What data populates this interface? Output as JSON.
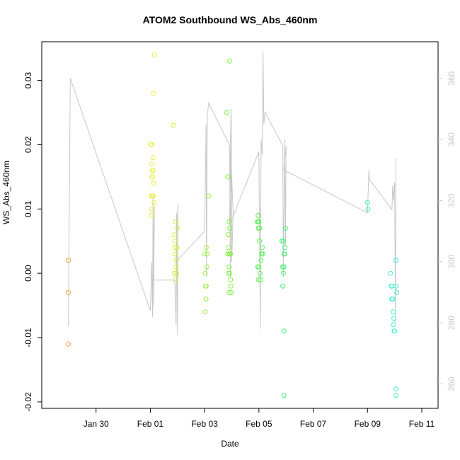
{
  "chart_data": {
    "type": "scatter",
    "title": "ATOM2 Southbound WS_Abs_460nm",
    "xlabel": "Date",
    "ylabel": "WS_Abs_460nm",
    "x_ticks": [
      "Jan 30",
      "Feb 01",
      "Feb 03",
      "Feb 05",
      "Feb 07",
      "Feb 09",
      "Feb 11"
    ],
    "x_tick_days": [
      30,
      32,
      34,
      36,
      38,
      40,
      42
    ],
    "xlim": [
      28.0,
      42.6
    ],
    "ylim": [
      -0.021,
      0.036
    ],
    "y_ticks": [
      "-0.02",
      "-0.01",
      "0.00",
      "0.01",
      "0.02",
      "0.03"
    ],
    "y_tick_values": [
      -0.02,
      -0.01,
      0.0,
      0.01,
      0.02,
      0.03
    ],
    "y2_ticks": [
      "260",
      "280",
      "300",
      "320",
      "340",
      "360"
    ],
    "y2_tick_values": [
      260,
      280,
      300,
      320,
      340,
      360
    ],
    "y2lim": [
      252,
      372
    ],
    "grid": false,
    "series": [
      {
        "color": "#F5A040",
        "points": [
          [
            28.98,
            0.002
          ],
          [
            28.98,
            -0.003
          ],
          [
            28.98,
            -0.011
          ]
        ]
      },
      {
        "color": "#E8F040",
        "points": [
          [
            32.02,
            0.02
          ],
          [
            32.05,
            0.02
          ],
          [
            32.06,
            0.017
          ],
          [
            32.07,
            0.016
          ],
          [
            32.08,
            0.015
          ],
          [
            32.1,
            0.018
          ],
          [
            32.12,
            0.014
          ],
          [
            32.04,
            0.012
          ],
          [
            32.08,
            0.012
          ],
          [
            32.14,
            0.011
          ],
          [
            32.03,
            0.009
          ],
          [
            32.05,
            0.01
          ],
          [
            32.1,
            0.016
          ],
          [
            32.06,
            0.015
          ],
          [
            32.15,
            0.034
          ],
          [
            32.12,
            0.028
          ],
          [
            32.1,
            0.012
          ]
        ]
      },
      {
        "color": "#D2F040",
        "points": [
          [
            32.85,
            0.023
          ],
          [
            32.88,
            0.006
          ],
          [
            32.9,
            0.004
          ],
          [
            32.92,
            0.003
          ],
          [
            32.95,
            0.002
          ],
          [
            32.97,
            0.0
          ],
          [
            32.9,
            0.005
          ],
          [
            32.93,
            0.008
          ],
          [
            33.0,
            0.007
          ],
          [
            32.98,
            0.004
          ],
          [
            32.88,
            0.0
          ],
          [
            32.92,
            -0.001
          ],
          [
            32.95,
            0.001
          ]
        ]
      },
      {
        "color": "#9AF040",
        "points": [
          [
            34.0,
            0.003
          ],
          [
            34.02,
            0.0
          ],
          [
            34.04,
            -0.002
          ],
          [
            34.06,
            0.004
          ],
          [
            34.08,
            0.001
          ],
          [
            34.02,
            -0.006
          ],
          [
            34.1,
            0.003
          ],
          [
            34.05,
            -0.004
          ],
          [
            34.15,
            0.012
          ],
          [
            34.06,
            -0.002
          ]
        ]
      },
      {
        "color": "#80F040",
        "points": [
          [
            34.82,
            0.025
          ],
          [
            34.85,
            0.015
          ],
          [
            34.87,
            0.006
          ],
          [
            34.9,
            0.008
          ],
          [
            34.92,
            0.003
          ],
          [
            34.88,
            0.004
          ],
          [
            34.85,
            0.003
          ],
          [
            34.9,
            0.001
          ],
          [
            34.93,
            0.0
          ],
          [
            34.95,
            -0.001
          ],
          [
            34.97,
            -0.002
          ],
          [
            34.9,
            -0.003
          ],
          [
            34.98,
            -0.003
          ],
          [
            34.95,
            0.003
          ],
          [
            34.92,
            0.033
          ],
          [
            34.88,
            0.0
          ],
          [
            34.93,
            0.007
          ]
        ]
      },
      {
        "color": "#5CF058",
        "points": [
          [
            35.95,
            0.008
          ],
          [
            35.97,
            0.009
          ],
          [
            36.0,
            0.008
          ],
          [
            35.98,
            0.007
          ],
          [
            36.02,
            0.005
          ],
          [
            35.96,
            0.001
          ],
          [
            36.0,
            0.001
          ],
          [
            36.04,
            0.0
          ],
          [
            35.98,
            -0.001
          ],
          [
            36.05,
            -0.001
          ],
          [
            36.1,
            0.003
          ],
          [
            36.12,
            0.004
          ],
          [
            36.08,
            0.002
          ],
          [
            36.15,
            0.003
          ],
          [
            36.02,
            0.007
          ],
          [
            35.97,
            0.008
          ]
        ]
      },
      {
        "color": "#40F070",
        "points": [
          [
            36.85,
            0.005
          ],
          [
            36.9,
            0.005
          ],
          [
            36.93,
            0.003
          ],
          [
            36.96,
            0.004
          ],
          [
            36.98,
            0.007
          ],
          [
            36.88,
            0.001
          ],
          [
            36.92,
            0.001
          ],
          [
            36.95,
            0.003
          ],
          [
            36.9,
            0.0
          ],
          [
            36.88,
            -0.002
          ],
          [
            36.92,
            -0.009
          ],
          [
            36.92,
            -0.019
          ]
        ]
      },
      {
        "color": "#40F0B0",
        "points": [
          [
            40.0,
            0.011
          ],
          [
            40.02,
            0.01
          ]
        ]
      },
      {
        "color": "#40F0D0",
        "points": [
          [
            40.85,
            0.0
          ],
          [
            40.88,
            -0.002
          ],
          [
            40.9,
            -0.004
          ],
          [
            40.93,
            -0.004
          ],
          [
            40.95,
            -0.006
          ],
          [
            40.97,
            -0.007
          ],
          [
            40.95,
            -0.008
          ],
          [
            40.98,
            -0.009
          ],
          [
            41.0,
            -0.009
          ],
          [
            41.05,
            -0.002
          ],
          [
            41.08,
            -0.003
          ],
          [
            41.05,
            0.002
          ],
          [
            40.9,
            -0.002
          ],
          [
            41.05,
            -0.018
          ],
          [
            41.05,
            -0.019
          ]
        ]
      }
    ],
    "secondary_line": {
      "color": "#C8C8C8",
      "points": [
        [
          28.98,
          279
        ],
        [
          29.05,
          360
        ],
        [
          32.0,
          284
        ],
        [
          32.05,
          300
        ],
        [
          32.08,
          282
        ],
        [
          32.1,
          322
        ],
        [
          32.12,
          285
        ],
        [
          32.15,
          318
        ],
        [
          32.1,
          294
        ],
        [
          32.9,
          294
        ],
        [
          32.95,
          279
        ],
        [
          32.97,
          316
        ],
        [
          33.0,
          276
        ],
        [
          33.02,
          319
        ],
        [
          32.95,
          300
        ],
        [
          34.0,
          310
        ],
        [
          34.05,
          345
        ],
        [
          34.07,
          295
        ],
        [
          34.1,
          348
        ],
        [
          34.15,
          352
        ],
        [
          34.92,
          338
        ],
        [
          34.95,
          295
        ],
        [
          34.98,
          350
        ],
        [
          35.0,
          300
        ],
        [
          35.05,
          316
        ],
        [
          34.95,
          339
        ],
        [
          34.97,
          348
        ],
        [
          34.92,
          312
        ],
        [
          36.0,
          336
        ],
        [
          36.05,
          278
        ],
        [
          36.08,
          340
        ],
        [
          36.12,
          335
        ],
        [
          36.15,
          369
        ],
        [
          36.18,
          345
        ],
        [
          36.22,
          349
        ],
        [
          36.88,
          338
        ],
        [
          36.9,
          295
        ],
        [
          36.95,
          340
        ],
        [
          36.98,
          305
        ],
        [
          37.0,
          338
        ],
        [
          36.92,
          330
        ],
        [
          40.0,
          316
        ],
        [
          40.05,
          330
        ],
        [
          40.07,
          327
        ],
        [
          40.9,
          317
        ],
        [
          40.93,
          325
        ],
        [
          40.95,
          320
        ],
        [
          41.0,
          326
        ],
        [
          41.03,
          280
        ],
        [
          41.05,
          334
        ]
      ]
    }
  }
}
